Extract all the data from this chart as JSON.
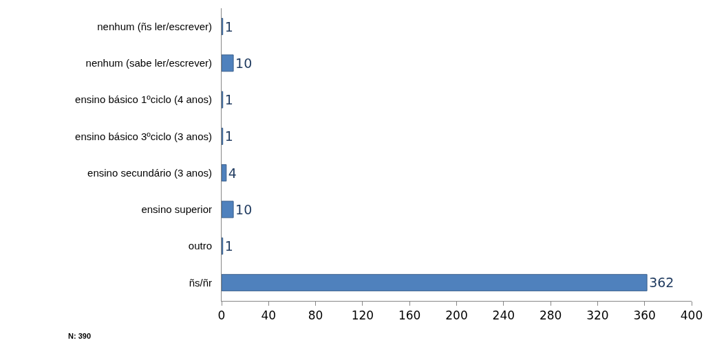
{
  "chart_data": {
    "type": "bar",
    "orientation": "horizontal",
    "categories": [
      "nenhum (ñs ler/escrever)",
      "nenhum (sabe ler/escrever)",
      "ensino básico 1ºciclo (4 anos)",
      "ensino básico 3ºciclo (3 anos)",
      "ensino secundário (3 anos)",
      "ensino superior",
      "outro",
      "ñs/ñr"
    ],
    "values": [
      1,
      10,
      1,
      1,
      4,
      10,
      1,
      362
    ],
    "color": "#4f81bd",
    "xlim": [
      0,
      400
    ],
    "xticks": [
      0,
      40,
      80,
      120,
      160,
      200,
      240,
      280,
      320,
      360,
      400
    ],
    "data_labels": true,
    "grid": false,
    "annotations": [
      "N: 390"
    ]
  }
}
